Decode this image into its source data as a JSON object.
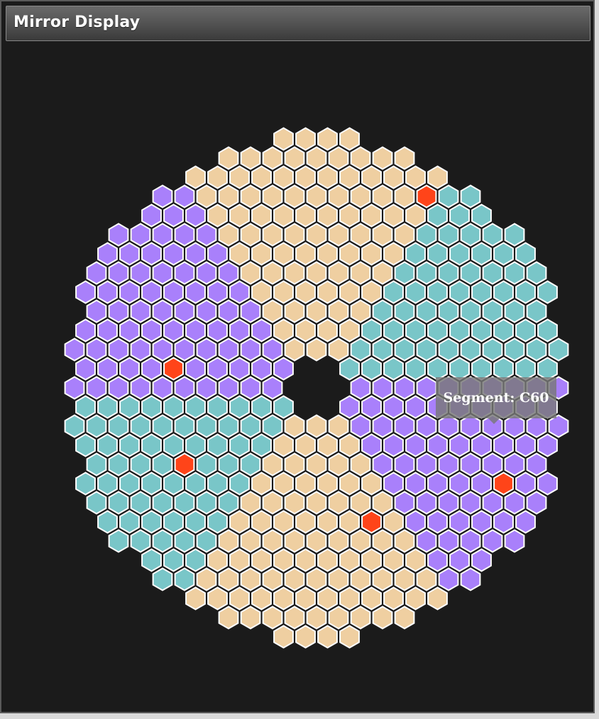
{
  "window": {
    "title": "Mirror Display"
  },
  "tooltip": {
    "text": "Segment: C60"
  },
  "colors": {
    "background": "#1b1b1b",
    "segment_outline": "#ffffff",
    "sector_peach": "#efcfa1",
    "sector_teal": "#79c6c8",
    "sector_purple": "#a980fb",
    "segment_flagged": "#ff4419"
  },
  "mirror": {
    "sector_colors_clockwise_from_top": [
      "sector_peach",
      "sector_teal",
      "sector_purple",
      "sector_peach",
      "sector_teal",
      "sector_purple"
    ],
    "flagged_segment_count": 5
  }
}
